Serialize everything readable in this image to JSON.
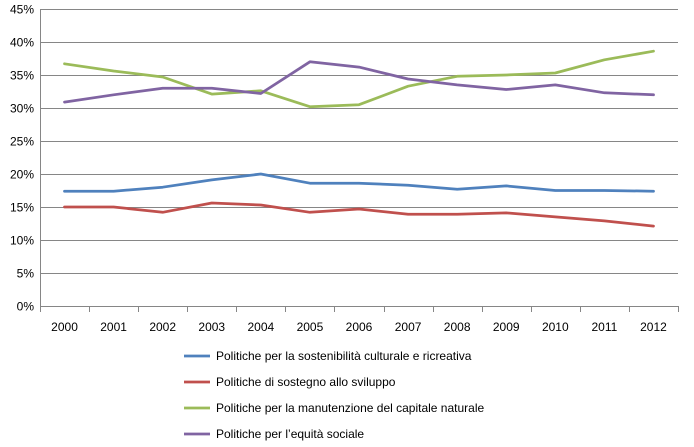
{
  "chart_data": {
    "type": "line",
    "categories": [
      "2000",
      "2001",
      "2002",
      "2003",
      "2004",
      "2005",
      "2006",
      "2007",
      "2008",
      "2009",
      "2010",
      "2011",
      "2012"
    ],
    "ylim": [
      0,
      45
    ],
    "ytick_step": 5,
    "yformat": "percent",
    "grid": "horizontal",
    "legend_position": "bottom",
    "series": [
      {
        "name": "Politiche per la sostenibilità culturale  e ricreativa",
        "color": "#4F81BD",
        "values": [
          17.4,
          17.4,
          18.0,
          19.1,
          20.0,
          18.6,
          18.6,
          18.3,
          17.7,
          18.2,
          17.5,
          17.5,
          17.4
        ]
      },
      {
        "name": "Politiche di sostegno allo sviluppo",
        "color": "#C0504D",
        "values": [
          15.0,
          15.0,
          14.2,
          15.6,
          15.3,
          14.2,
          14.7,
          13.9,
          13.9,
          14.1,
          13.5,
          12.9,
          12.1
        ]
      },
      {
        "name": "Politiche per la manutenzione del capitale naturale",
        "color": "#9BBB59",
        "values": [
          36.7,
          35.6,
          34.7,
          32.1,
          32.6,
          30.2,
          30.5,
          33.3,
          34.8,
          35.0,
          35.3,
          37.3,
          38.6
        ]
      },
      {
        "name": "Politiche per l’equità sociale",
        "color": "#8064A2",
        "values": [
          30.9,
          32.0,
          33.0,
          33.0,
          32.2,
          37.0,
          36.2,
          34.4,
          33.5,
          32.8,
          33.5,
          32.3,
          32.0
        ]
      }
    ]
  }
}
